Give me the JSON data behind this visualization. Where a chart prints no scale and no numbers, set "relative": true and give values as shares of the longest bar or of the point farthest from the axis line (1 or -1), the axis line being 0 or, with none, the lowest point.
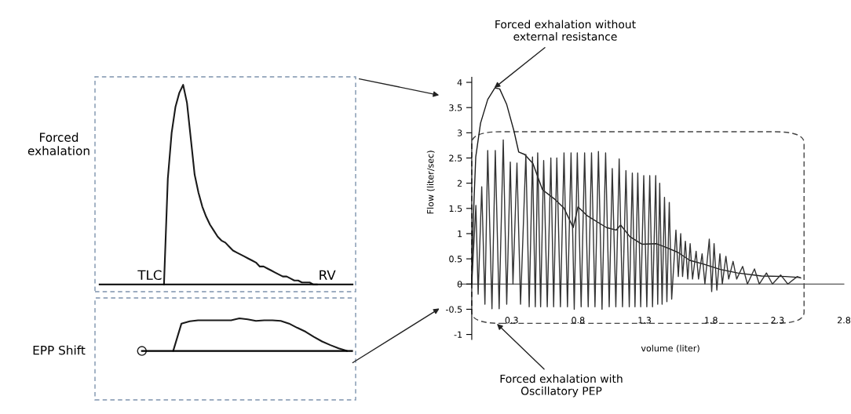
{
  "chart_data": [
    {
      "type": "line",
      "relative": true,
      "ylabel": "Forced\nexhalation",
      "color": "#1a1a1a",
      "annotations": [
        "TLC",
        "RV"
      ],
      "categories": [
        null,
        null,
        null,
        null,
        null,
        null,
        null,
        null,
        null,
        null,
        null,
        null,
        null,
        null,
        null,
        null,
        null,
        null,
        null,
        null,
        null,
        null,
        null,
        null,
        null,
        null,
        null,
        null,
        null,
        null,
        null,
        null,
        null,
        null,
        null,
        null,
        null,
        null,
        null,
        null,
        null
      ],
      "values": [
        0,
        0.53,
        0.76,
        0.89,
        0.96,
        1.0,
        0.91,
        0.73,
        0.55,
        0.46,
        0.39,
        0.34,
        0.3,
        0.27,
        0.24,
        0.22,
        0.21,
        0.19,
        0.17,
        0.16,
        0.15,
        0.14,
        0.13,
        0.12,
        0.11,
        0.09,
        0.09,
        0.08,
        0.07,
        0.06,
        0.05,
        0.04,
        0.04,
        0.03,
        0.02,
        0.02,
        0.01,
        0.01,
        0.01,
        0,
        0
      ]
    },
    {
      "type": "line",
      "relative": true,
      "ylabel": "EPP Shift",
      "color": "#1a1a1a",
      "categories": [
        null,
        null,
        null,
        null,
        null,
        null,
        null,
        null,
        null,
        null,
        null,
        null,
        null,
        null,
        null,
        null,
        null,
        null,
        null,
        null,
        null,
        null
      ],
      "values": [
        0,
        0.84,
        0.91,
        0.94,
        0.94,
        0.94,
        0.94,
        0.94,
        1.0,
        0.97,
        0.92,
        0.94,
        0.94,
        0.92,
        0.84,
        0.71,
        0.59,
        0.43,
        0.29,
        0.18,
        0.08,
        0
      ]
    },
    {
      "type": "line",
      "xlabel": "volume (liter)",
      "ylabel": "Flow (liter/sec)",
      "xlim": [
        -0.1,
        2.8
      ],
      "ylim": [
        -1.1,
        4.1
      ],
      "xticks": [
        0.3,
        0.8,
        1.3,
        1.8,
        2.3,
        2.8
      ],
      "yticks": [
        -1,
        -0.5,
        0,
        0.5,
        1,
        1.5,
        2,
        2.5,
        3,
        3.5,
        4
      ],
      "annotations": [
        {
          "text": "Forced exhalation without\nexternal resistance",
          "x": 0.17,
          "y": 3.89
        },
        "Forced exhalation with\nOscillatory PEP"
      ],
      "series": [
        {
          "color": "#1a1a1a",
          "x": [
            0,
            0.012,
            0.03,
            0.066,
            0.12,
            0.174,
            0.21,
            0.263,
            0.317,
            0.353,
            0.398,
            0.46,
            0.532,
            0.621,
            0.693,
            0.763,
            0.799,
            0.871,
            1.014,
            1.086,
            1.12,
            1.19,
            1.28,
            1.39,
            1.46,
            1.55,
            1.64,
            1.75,
            1.87,
            2.0,
            2.18,
            2.36,
            2.47
          ],
          "values": [
            0,
            1.33,
            2.52,
            3.19,
            3.66,
            3.89,
            3.87,
            3.56,
            3.04,
            2.62,
            2.57,
            2.39,
            1.87,
            1.69,
            1.51,
            1.12,
            1.53,
            1.35,
            1.12,
            1.07,
            1.17,
            0.94,
            0.79,
            0.8,
            0.73,
            0.63,
            0.47,
            0.39,
            0.29,
            0.22,
            0.16,
            0.15,
            0.13
          ]
        },
        {
          "color": "#333333",
          "x": [
            0,
            0.031,
            0.048,
            0.075,
            0.099,
            0.12,
            0.152,
            0.177,
            0.206,
            0.237,
            0.263,
            0.29,
            0.31,
            0.34,
            0.367,
            0.407,
            0.432,
            0.457,
            0.478,
            0.496,
            0.518,
            0.541,
            0.568,
            0.595,
            0.616,
            0.64,
            0.667,
            0.694,
            0.72,
            0.747,
            0.771,
            0.794,
            0.823,
            0.849,
            0.876,
            0.901,
            0.927,
            0.953,
            0.98,
            1.007,
            1.034,
            1.057,
            1.084,
            1.109,
            1.134,
            1.16,
            1.185,
            1.208,
            1.228,
            1.249,
            1.271,
            1.294,
            1.317,
            1.339,
            1.36,
            1.384,
            1.399,
            1.414,
            1.432,
            1.45,
            1.468,
            1.486,
            1.504,
            1.536,
            1.554,
            1.572,
            1.586,
            1.607,
            1.625,
            1.643,
            1.661,
            1.688,
            1.706,
            1.733,
            1.754,
            1.787,
            1.805,
            1.823,
            1.844,
            1.867,
            1.885,
            1.912,
            1.933,
            1.966,
            1.993,
            2.038,
            2.074,
            2.127,
            2.163,
            2.217,
            2.262,
            2.324,
            2.378,
            2.449,
            2.476
          ],
          "values": [
            0,
            1.56,
            -0.2,
            1.93,
            -0.4,
            2.65,
            -0.49,
            2.65,
            -0.49,
            2.86,
            -0.4,
            2.42,
            0.0,
            2.4,
            -0.4,
            2.57,
            -0.45,
            2.52,
            -0.45,
            2.6,
            -0.45,
            2.45,
            -0.45,
            2.5,
            -0.45,
            2.5,
            -0.45,
            2.6,
            -0.45,
            2.6,
            -0.5,
            2.6,
            -0.45,
            2.6,
            -0.45,
            2.6,
            -0.45,
            2.63,
            -0.5,
            2.6,
            -0.45,
            2.29,
            -0.45,
            2.48,
            -0.45,
            2.25,
            -0.45,
            2.2,
            -0.45,
            2.2,
            -0.45,
            2.15,
            -0.45,
            2.15,
            -0.45,
            2.15,
            -0.4,
            2.0,
            -0.4,
            1.72,
            -0.35,
            1.62,
            -0.3,
            1.07,
            0.15,
            1.0,
            0.15,
            0.85,
            0.1,
            0.8,
            0.1,
            0.65,
            0.1,
            0.6,
            0.0,
            0.89,
            -0.15,
            0.8,
            -0.12,
            0.6,
            0.0,
            0.55,
            0.1,
            0.45,
            0.1,
            0.35,
            0.0,
            0.3,
            0.0,
            0.22,
            0.0,
            0.18,
            0.0,
            0.15,
            0.12
          ]
        }
      ]
    }
  ]
}
